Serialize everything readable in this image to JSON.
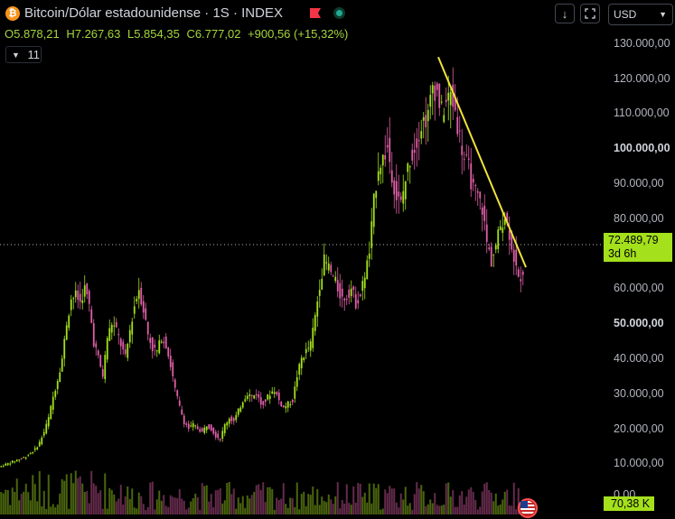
{
  "header": {
    "title": "Bitcoin/Dólar estadounidense · 1S · INDEX",
    "coin_icon": "bitcoin-icon",
    "flag_icon": "flag-icon",
    "status_icon": "market-status-icon"
  },
  "ohlc": {
    "open": "O5.878,21",
    "high": "H7.267,63",
    "low": "L5.854,35",
    "close": "C6.777,02",
    "change": "+900,56 (+15,32%)"
  },
  "indicators": {
    "collapse_count": "11"
  },
  "toolbar": {
    "currency": "USD",
    "download_icon": "arrow-down-icon",
    "screenshot_icon": "screenshot-icon"
  },
  "price_label": {
    "value": "72.489,79",
    "countdown": "3d 6h"
  },
  "volume_label": "70,38 K",
  "colors": {
    "up": "#a4e01c",
    "down": "#e05fa8",
    "trendline": "#f1e23a",
    "accent": "#a4e01c"
  },
  "chart_data": {
    "type": "candlestick",
    "symbol": "Bitcoin/Dólar estadounidense",
    "interval": "1S",
    "ylim": [
      -2500,
      132000
    ],
    "y_ticks": [
      "130.000,00",
      "120.000,00",
      "110.000,00",
      "100.000,00",
      "90.000,00",
      "80.000,00",
      "60.000,00",
      "50.000,00",
      "40.000,00",
      "30.000,00",
      "20.000,00",
      "10.000,00",
      "0,00"
    ],
    "bold_ticks": [
      "100.000,00",
      "50.000,00"
    ],
    "current_price": 72489.79,
    "series": [
      {
        "name": "price",
        "x": [
          0,
          5,
          10,
          15,
          20,
          25,
          30,
          35,
          40,
          45,
          50,
          55,
          60,
          65,
          70,
          75,
          80,
          85,
          90,
          95,
          100,
          105,
          110,
          115,
          120,
          125,
          130,
          135,
          140,
          145,
          150,
          155,
          160,
          165,
          170,
          175,
          180,
          185,
          190,
          195,
          200,
          205,
          210,
          215,
          220,
          225,
          230,
          235,
          240,
          245,
          250,
          255,
          260,
          265,
          270,
          275,
          280,
          285,
          290,
          295,
          300,
          305,
          310,
          315,
          320,
          325,
          330,
          335,
          340,
          345,
          350,
          355,
          360,
          365,
          370,
          375,
          380,
          385,
          390,
          395,
          400,
          405,
          410,
          415,
          420,
          425,
          430,
          435,
          440,
          445,
          450,
          455,
          460,
          465,
          470,
          475,
          480,
          485,
          490,
          495,
          500,
          505,
          510,
          515,
          520,
          525,
          530,
          535,
          540,
          545,
          550,
          555,
          560,
          565,
          570,
          575,
          580
        ],
        "values": [
          9000,
          9500,
          10000,
          10500,
          11000,
          11500,
          12000,
          13000,
          14000,
          16000,
          19000,
          23000,
          29000,
          34000,
          40000,
          50000,
          57000,
          58000,
          56000,
          60000,
          55000,
          45000,
          40000,
          35000,
          46000,
          50000,
          48000,
          44000,
          40000,
          48000,
          55000,
          60000,
          54000,
          47000,
          43000,
          42000,
          46000,
          44000,
          38000,
          31000,
          26000,
          22000,
          20000,
          21000,
          20000,
          19000,
          21000,
          20000,
          18000,
          17000,
          21000,
          23000,
          22000,
          25000,
          28000,
          30000,
          29000,
          30000,
          27000,
          28000,
          30000,
          31000,
          28000,
          26000,
          27000,
          28000,
          35000,
          40000,
          42000,
          44000,
          52000,
          61000,
          68000,
          66000,
          63000,
          60000,
          57000,
          58000,
          60000,
          56000,
          58000,
          64000,
          70000,
          85000,
          95000,
          97000,
          100000,
          93000,
          86000,
          84000,
          91000,
          97000,
          100000,
          105000,
          108000,
          109000,
          118000,
          116000,
          110000,
          113000,
          115000,
          111000,
          103000,
          97000,
          94000,
          88000,
          86000,
          83000,
          73000,
          68000,
          72000,
          78000,
          81000,
          76000,
          69000,
          62000,
          65000
        ],
        "color": "#a4e01c"
      }
    ],
    "trendline": {
      "from": [
        485,
        126000
      ],
      "to": [
        582,
        66000
      ],
      "color": "#f1e23a"
    }
  }
}
